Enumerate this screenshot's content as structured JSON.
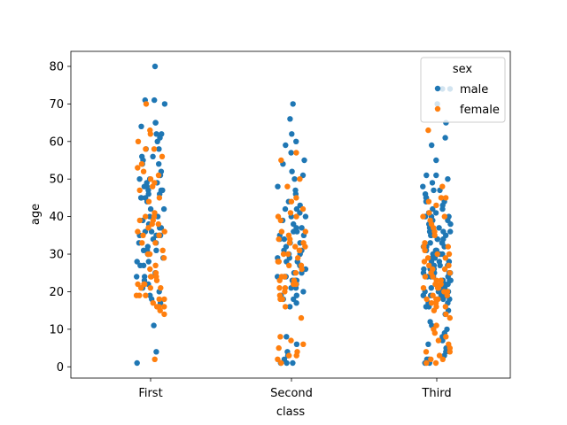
{
  "chart_data": {
    "type": "scatter",
    "subtype": "strip",
    "xlabel": "class",
    "ylabel": "age",
    "categories": [
      "First",
      "Second",
      "Third"
    ],
    "ylim": [
      -3,
      84
    ],
    "yticks": [
      0,
      10,
      20,
      30,
      40,
      50,
      60,
      70,
      80
    ],
    "legend": {
      "title": "sex",
      "position": "top-right",
      "entries": [
        "male",
        "female"
      ]
    },
    "colors": {
      "male": "#1f77b4",
      "female": "#ff7f0e"
    },
    "series": [
      {
        "name": "male",
        "points": {
          "First": [
            80,
            71,
            71,
            70,
            65,
            65,
            64,
            62,
            62,
            61,
            60,
            58,
            58,
            56,
            56,
            55,
            54,
            54,
            52,
            51,
            50,
            50,
            49,
            49,
            48,
            48,
            47,
            47,
            47,
            46,
            46,
            45,
            45,
            45,
            44,
            42,
            42,
            40,
            40,
            39,
            38,
            37,
            37,
            36,
            36,
            35,
            35,
            35,
            34,
            33,
            33,
            32,
            31,
            31,
            31,
            30,
            30,
            29,
            28,
            28,
            27,
            27,
            25,
            24,
            24,
            23,
            22,
            21,
            20,
            19,
            18,
            17,
            11,
            4,
            1
          ],
          "Second": [
            70,
            66,
            62,
            60,
            59,
            57,
            55,
            54,
            52,
            51,
            50,
            48,
            47,
            46,
            44,
            43,
            42,
            42,
            41,
            40,
            40,
            39,
            38,
            37,
            37,
            36,
            36,
            35,
            35,
            34,
            34,
            33,
            33,
            32,
            31,
            31,
            30,
            30,
            29,
            29,
            28,
            28,
            27,
            27,
            26,
            25,
            25,
            24,
            24,
            24,
            23,
            23,
            23,
            22,
            21,
            21,
            20,
            19,
            19,
            18,
            18,
            17,
            16,
            8,
            6,
            4,
            3,
            2,
            1,
            1,
            1
          ],
          "Third": [
            74,
            74,
            70,
            65,
            61,
            59,
            55,
            51,
            51,
            50,
            49,
            48,
            47,
            47,
            46,
            45,
            45,
            44,
            44,
            43,
            42,
            42,
            41,
            41,
            40,
            40,
            40,
            39,
            39,
            38,
            38,
            37,
            37,
            36,
            36,
            36,
            35,
            35,
            35,
            34,
            34,
            34,
            33,
            33,
            33,
            32,
            32,
            32,
            31,
            31,
            31,
            30,
            30,
            30,
            30,
            29,
            29,
            29,
            28,
            28,
            28,
            28,
            27,
            27,
            27,
            26,
            26,
            26,
            26,
            25,
            25,
            25,
            25,
            24,
            24,
            24,
            24,
            23,
            23,
            23,
            22,
            22,
            22,
            22,
            21,
            21,
            21,
            21,
            20,
            20,
            20,
            20,
            19,
            19,
            19,
            19,
            18,
            18,
            18,
            17,
            17,
            16,
            16,
            15,
            14,
            12,
            11,
            10,
            9,
            8,
            7,
            6,
            5,
            4,
            3,
            2,
            2,
            1,
            1
          ]
        }
      },
      {
        "name": "female",
        "points": {
          "First": [
            70,
            63,
            62,
            60,
            58,
            58,
            56,
            54,
            53,
            52,
            51,
            50,
            49,
            48,
            47,
            45,
            44,
            41,
            40,
            40,
            39,
            39,
            38,
            38,
            37,
            36,
            36,
            35,
            35,
            35,
            33,
            33,
            31,
            30,
            30,
            29,
            27,
            26,
            25,
            24,
            24,
            24,
            23,
            22,
            22,
            22,
            21,
            21,
            21,
            19,
            19,
            19,
            18,
            18,
            17,
            16,
            16,
            16,
            15,
            14,
            2
          ],
          "Second": [
            57,
            55,
            50,
            48,
            45,
            44,
            42,
            41,
            40,
            40,
            39,
            36,
            36,
            35,
            34,
            34,
            33,
            33,
            32,
            32,
            31,
            31,
            30,
            30,
            29,
            28,
            28,
            27,
            27,
            26,
            25,
            24,
            24,
            23,
            23,
            22,
            22,
            21,
            21,
            20,
            19,
            18,
            18,
            16,
            13,
            8,
            7,
            6,
            5,
            4,
            3,
            3,
            2,
            1
          ],
          "Third": [
            63,
            48,
            45,
            45,
            44,
            43,
            41,
            40,
            40,
            39,
            38,
            37,
            36,
            35,
            33,
            32,
            32,
            31,
            30,
            30,
            29,
            29,
            28,
            27,
            27,
            26,
            26,
            25,
            25,
            24,
            24,
            23,
            23,
            22,
            22,
            22,
            21,
            21,
            21,
            20,
            20,
            19,
            19,
            18,
            18,
            18,
            17,
            17,
            16,
            16,
            15,
            14,
            13,
            11,
            10,
            9,
            8,
            7,
            6,
            5,
            4,
            4,
            3,
            2,
            2,
            1,
            1
          ]
        }
      }
    ]
  }
}
